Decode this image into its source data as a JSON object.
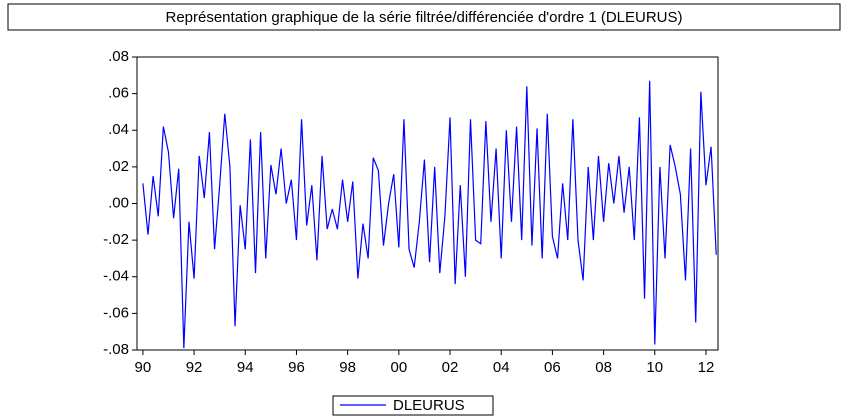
{
  "chart_data": {
    "type": "line",
    "title": "Représentation graphique de la série filtrée/différenciée d'ordre 1 (DLEURUS)",
    "x": [
      1990,
      1990.2,
      1990.4,
      1990.6,
      1990.8,
      1991,
      1991.2,
      1991.4,
      1991.6,
      1991.8,
      1992,
      1992.2,
      1992.4,
      1992.6,
      1992.8,
      1993,
      1993.2,
      1993.4,
      1993.6,
      1993.8,
      1994,
      1994.2,
      1994.4,
      1994.6,
      1994.8,
      1995,
      1995.2,
      1995.4,
      1995.6,
      1995.8,
      1996,
      1996.2,
      1996.4,
      1996.6,
      1996.8,
      1997,
      1997.2,
      1997.4,
      1997.6,
      1997.8,
      1998,
      1998.2,
      1998.4,
      1998.6,
      1998.8,
      1999,
      1999.2,
      1999.4,
      1999.6,
      1999.8,
      2000,
      2000.2,
      2000.4,
      2000.6,
      2000.8,
      2001,
      2001.2,
      2001.4,
      2001.6,
      2001.8,
      2002,
      2002.2,
      2002.4,
      2002.6,
      2002.8,
      2003,
      2003.2,
      2003.4,
      2003.6,
      2003.8,
      2004,
      2004.2,
      2004.4,
      2004.6,
      2004.8,
      2005,
      2005.2,
      2005.4,
      2005.6,
      2005.8,
      2006,
      2006.2,
      2006.4,
      2006.6,
      2006.8,
      2007,
      2007.2,
      2007.4,
      2007.6,
      2007.8,
      2008,
      2008.2,
      2008.4,
      2008.6,
      2008.8,
      2009,
      2009.2,
      2009.4,
      2009.6,
      2009.8,
      2010,
      2010.2,
      2010.4,
      2010.6,
      2010.8,
      2011,
      2011.2,
      2011.4,
      2011.6,
      2011.8,
      2012,
      2012.2,
      2012.4
    ],
    "series": [
      {
        "name": "DLEURUS",
        "color": "#0000ff",
        "values": [
          0.011,
          -0.017,
          0.015,
          -0.007,
          0.042,
          0.028,
          -0.008,
          0.019,
          -0.079,
          -0.01,
          -0.041,
          0.026,
          0.003,
          0.039,
          -0.025,
          0.01,
          0.049,
          0.02,
          -0.067,
          -0.001,
          -0.025,
          0.035,
          -0.038,
          0.039,
          -0.03,
          0.021,
          0.005,
          0.03,
          0.0,
          0.013,
          -0.02,
          0.046,
          -0.012,
          0.01,
          -0.031,
          0.026,
          -0.014,
          -0.003,
          -0.014,
          0.013,
          -0.01,
          0.012,
          -0.041,
          -0.011,
          -0.03,
          0.025,
          0.018,
          -0.023,
          0.0,
          0.016,
          -0.024,
          0.046,
          -0.025,
          -0.035,
          -0.01,
          0.024,
          -0.032,
          0.02,
          -0.038,
          -0.007,
          0.047,
          -0.044,
          0.01,
          -0.04,
          0.046,
          -0.02,
          -0.022,
          0.045,
          -0.01,
          0.03,
          -0.03,
          0.04,
          -0.01,
          0.042,
          -0.02,
          0.064,
          -0.023,
          0.041,
          -0.03,
          0.049,
          -0.018,
          -0.03,
          0.011,
          -0.02,
          0.046,
          -0.02,
          -0.042,
          0.02,
          -0.02,
          0.026,
          -0.01,
          0.022,
          0.0,
          0.026,
          -0.005,
          0.02,
          -0.02,
          0.047,
          -0.052,
          0.067,
          -0.077,
          0.02,
          -0.03,
          0.032,
          0.02,
          0.005,
          -0.042,
          0.03,
          -0.065,
          0.061,
          0.01,
          0.031,
          -0.028
        ]
      }
    ],
    "xlim": [
      1989.77,
      2012.47
    ],
    "xticks": [
      {
        "value": 1990,
        "label": "90"
      },
      {
        "value": 1992,
        "label": "92"
      },
      {
        "value": 1994,
        "label": "94"
      },
      {
        "value": 1996,
        "label": "96"
      },
      {
        "value": 1998,
        "label": "98"
      },
      {
        "value": 2000,
        "label": "00"
      },
      {
        "value": 2002,
        "label": "02"
      },
      {
        "value": 2004,
        "label": "04"
      },
      {
        "value": 2006,
        "label": "06"
      },
      {
        "value": 2008,
        "label": "08"
      },
      {
        "value": 2010,
        "label": "10"
      },
      {
        "value": 2012,
        "label": "12"
      }
    ],
    "ylim": [
      -0.08,
      0.08
    ],
    "yticks": [
      {
        "value": 0.08,
        "label": ".08"
      },
      {
        "value": 0.06,
        "label": ".06"
      },
      {
        "value": 0.04,
        "label": ".04"
      },
      {
        "value": 0.02,
        "label": ".02"
      },
      {
        "value": 0,
        "label": ".00"
      },
      {
        "value": -0.02,
        "label": "-.02"
      },
      {
        "value": -0.04,
        "label": "-.04"
      },
      {
        "value": -0.06,
        "label": "-.06"
      },
      {
        "value": -0.08,
        "label": "-.08"
      }
    ]
  }
}
